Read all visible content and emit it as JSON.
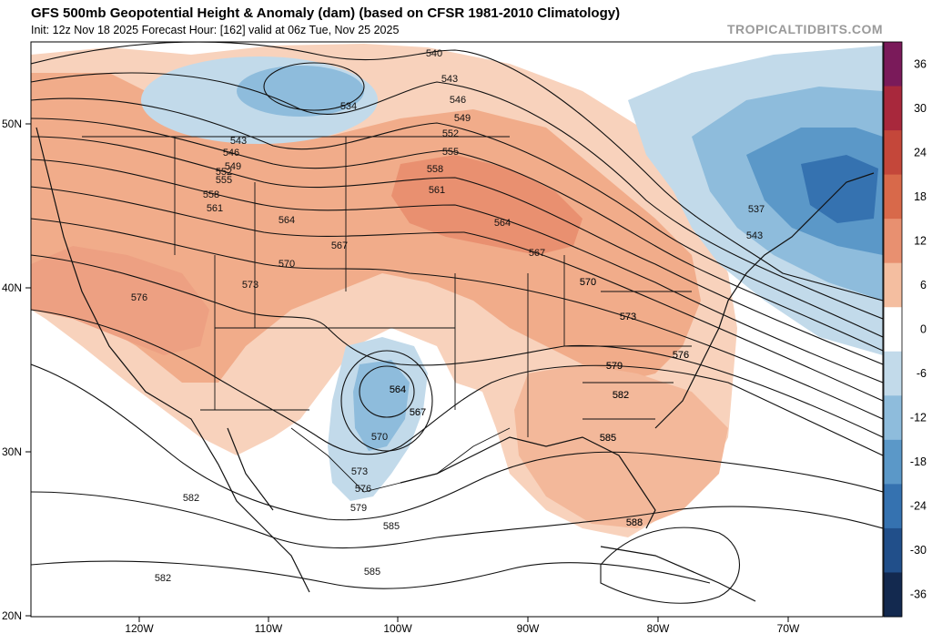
{
  "header": {
    "title": "GFS 500mb Geopotential Height & Anomaly (dam) (based on CFSR 1981-2010 Climatology)",
    "subtitle": "Init: 12z Nov 18 2025   Forecast Hour: [162]   valid at 06z Tue, Nov 25 2025",
    "watermark": "TROPICALTIDBITS.COM"
  },
  "chart_data": {
    "type": "contour-map",
    "title": "GFS 500mb Geopotential Height & Anomaly (dam) (based on CFSR 1981-2010 Climatology)",
    "lat_ticks": [
      "20N",
      "30N",
      "40N",
      "50N"
    ],
    "lon_ticks": [
      "120W",
      "110W",
      "100W",
      "90W",
      "80W",
      "70W"
    ],
    "colorbar": {
      "labels": [
        "36",
        "30",
        "24",
        "18",
        "12",
        "6",
        "0",
        "-6",
        "-12",
        "-18",
        "-24",
        "-30",
        "-36"
      ],
      "colors": [
        "#7a1a5a",
        "#a8283c",
        "#c4473a",
        "#d8694a",
        "#e89070",
        "#f4bea0",
        "#ffffff",
        "#c2daea",
        "#8ebcdc",
        "#5b98c8",
        "#3572b0",
        "#214f8a",
        "#13294f"
      ]
    },
    "contour_labels": [
      {
        "text": "540"
      },
      {
        "text": "543"
      },
      {
        "text": "546"
      },
      {
        "text": "549"
      },
      {
        "text": "552"
      },
      {
        "text": "555"
      },
      {
        "text": "558"
      },
      {
        "text": "561"
      },
      {
        "text": "564"
      },
      {
        "text": "567"
      },
      {
        "text": "570"
      },
      {
        "text": "573"
      },
      {
        "text": "576"
      },
      {
        "text": "579"
      },
      {
        "text": "582"
      },
      {
        "text": "585"
      },
      {
        "text": "588"
      },
      {
        "text": "534"
      },
      {
        "text": "543"
      },
      {
        "text": "546"
      },
      {
        "text": "549"
      },
      {
        "text": "552"
      },
      {
        "text": "555"
      },
      {
        "text": "558"
      },
      {
        "text": "561"
      },
      {
        "text": "564"
      },
      {
        "text": "567"
      },
      {
        "text": "570"
      },
      {
        "text": "573"
      },
      {
        "text": "576"
      },
      {
        "text": "564"
      },
      {
        "text": "567"
      },
      {
        "text": "570"
      },
      {
        "text": "573"
      },
      {
        "text": "576"
      },
      {
        "text": "579"
      },
      {
        "text": "582"
      },
      {
        "text": "585"
      },
      {
        "text": "582"
      },
      {
        "text": "585"
      },
      {
        "text": "537"
      },
      {
        "text": "543"
      },
      {
        "text": "570"
      },
      {
        "text": "573"
      },
      {
        "text": "576"
      },
      {
        "text": "579"
      },
      {
        "text": "582"
      },
      {
        "text": "585"
      },
      {
        "text": "588"
      },
      {
        "text": "564"
      },
      {
        "text": "567"
      }
    ]
  }
}
